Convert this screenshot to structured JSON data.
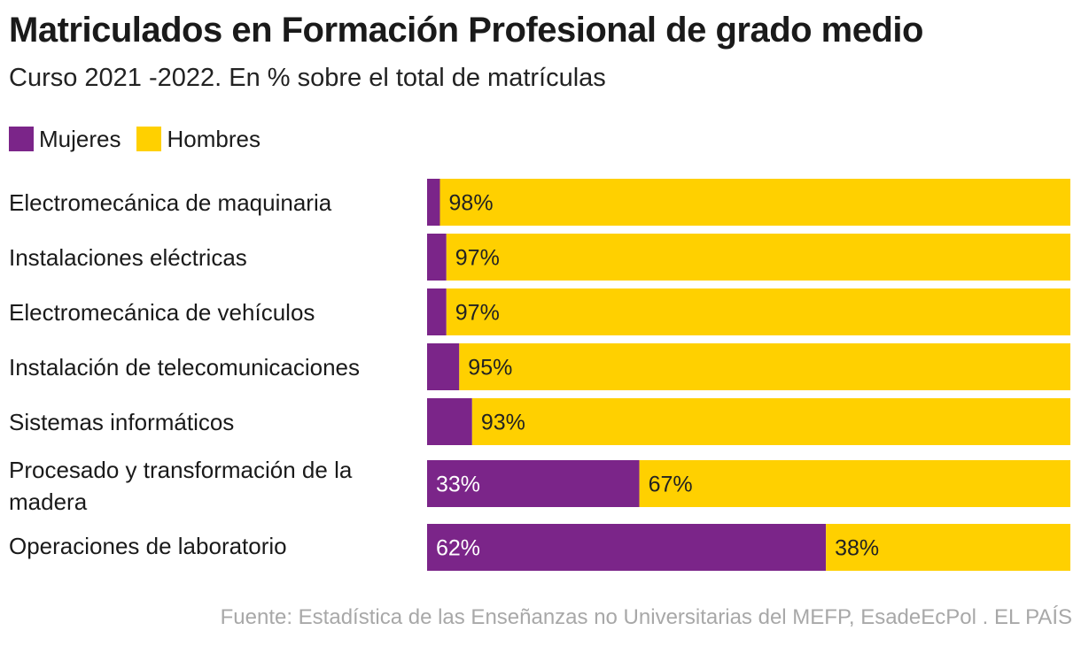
{
  "chart_data": {
    "type": "bar",
    "orientation": "horizontal",
    "stacked": "percent",
    "title": "Matriculados en Formación Profesional de grado medio",
    "subtitle": "Curso 2021 -2022. En % sobre el total de matrículas",
    "categories": [
      "Electromecánica de maquinaria",
      "Instalaciones eléctricas",
      "Electromecánica de vehículos",
      "Instalación de telecomunicaciones",
      "Sistemas informáticos",
      "Procesado y transformación de la madera",
      "Operaciones de laboratorio"
    ],
    "series": [
      {
        "name": "Mujeres",
        "color": "#7b2589",
        "values": [
          2,
          3,
          3,
          5,
          7,
          33,
          62
        ],
        "labels": [
          "",
          "",
          "",
          "",
          "",
          "33%",
          "62%"
        ]
      },
      {
        "name": "Hombres",
        "color": "#ffd000",
        "values": [
          98,
          97,
          97,
          95,
          93,
          67,
          38
        ],
        "labels": [
          "98%",
          "97%",
          "97%",
          "95%",
          "93%",
          "67%",
          "38%"
        ]
      }
    ],
    "xlim": [
      0,
      100
    ],
    "legend": "top-left",
    "grid": false
  },
  "source": "Fuente: Estadística de las Enseñanzas no Universitarias del MEFP, EsadeEcPol . EL PAÍS"
}
